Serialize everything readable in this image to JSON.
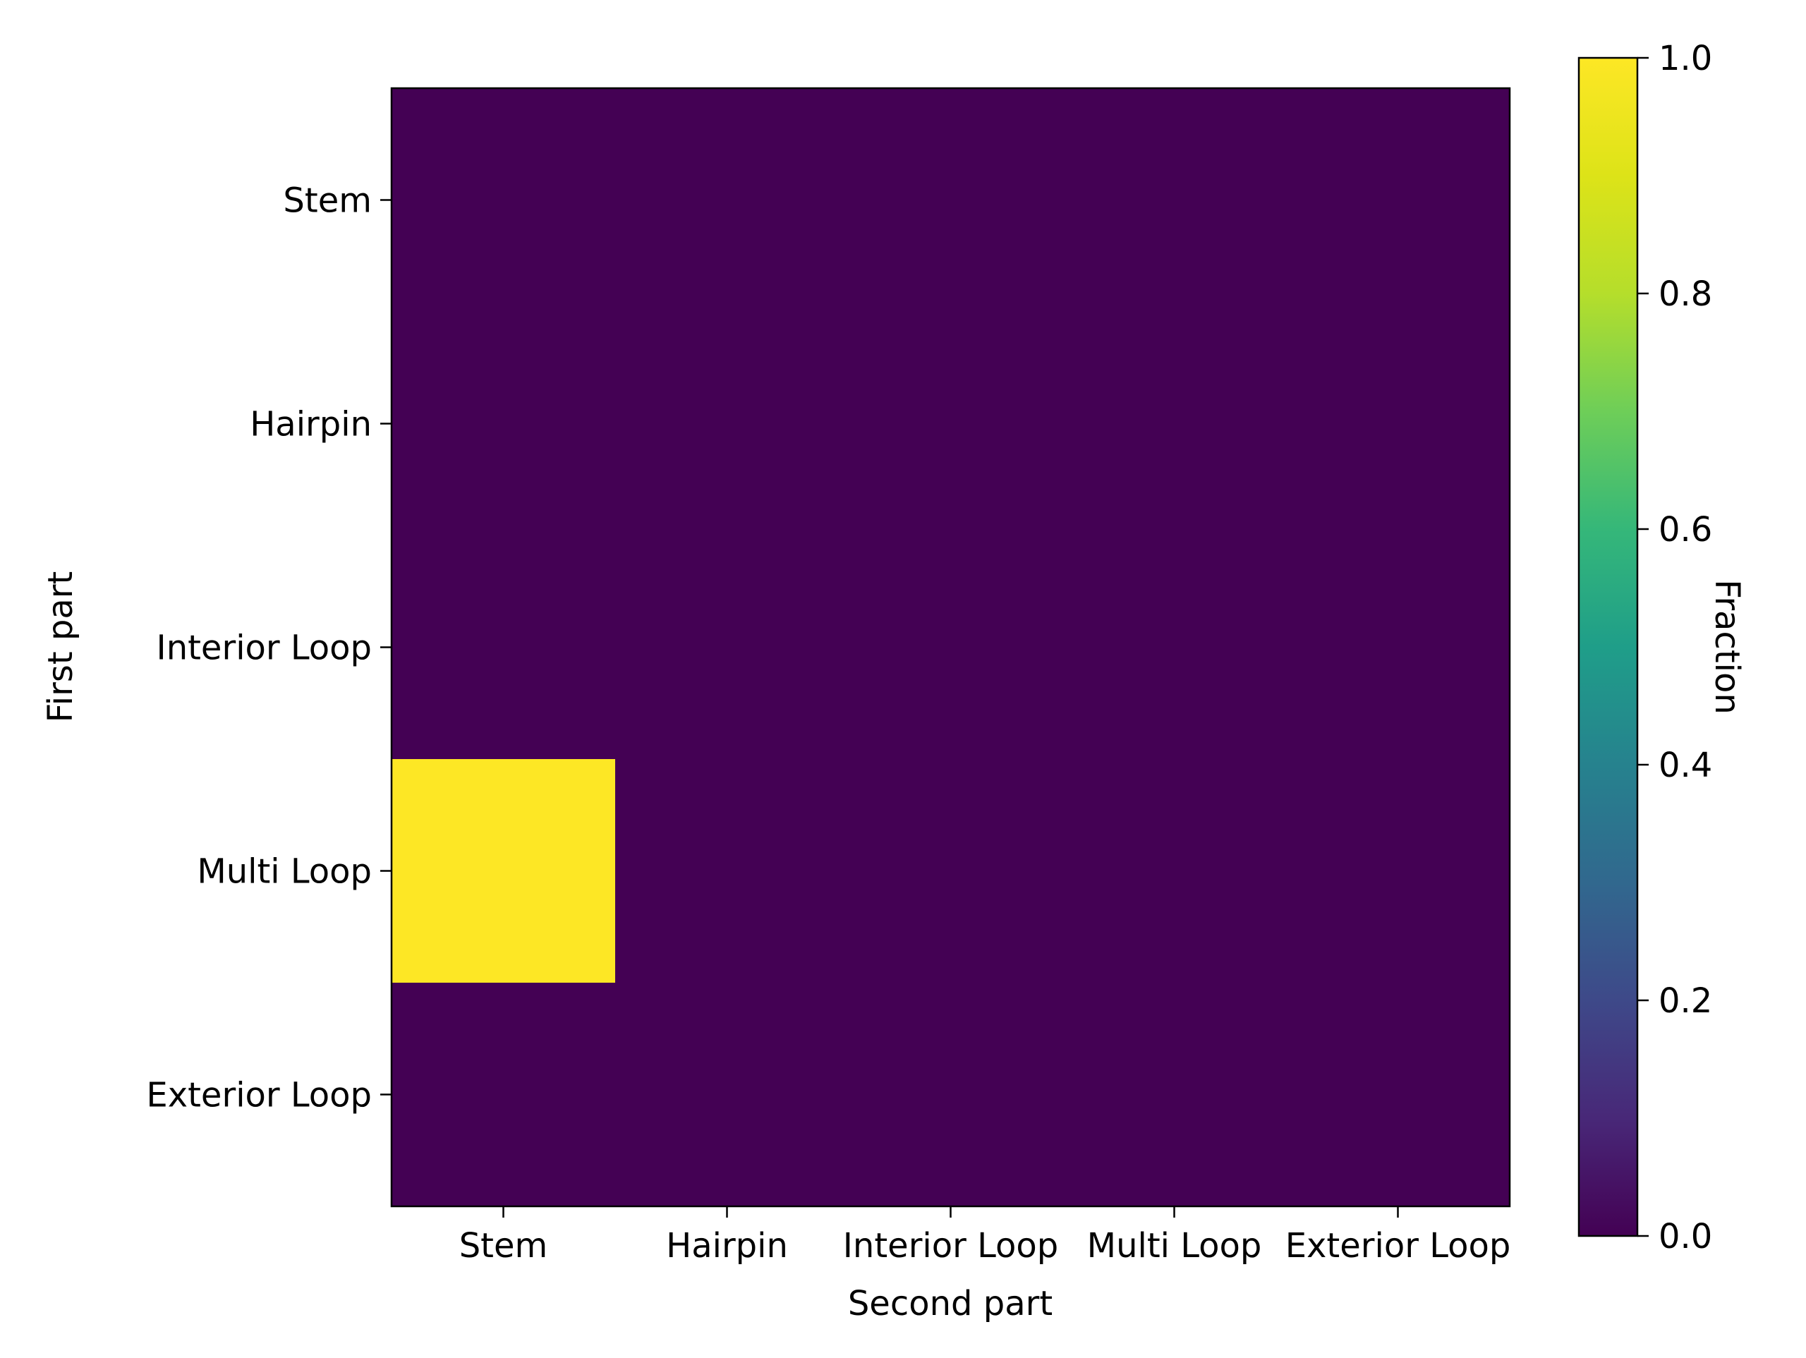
{
  "chart_data": {
    "type": "heatmap",
    "title": "",
    "xlabel": "Second part",
    "ylabel": "First part",
    "x_categories": [
      "Stem",
      "Hairpin",
      "Interior Loop",
      "Multi Loop",
      "Exterior Loop"
    ],
    "y_categories": [
      "Stem",
      "Hairpin",
      "Interior Loop",
      "Multi Loop",
      "Exterior Loop"
    ],
    "values": [
      [
        0,
        0,
        0,
        0,
        0
      ],
      [
        0,
        0,
        0,
        0,
        0
      ],
      [
        0,
        0,
        0,
        0,
        0
      ],
      [
        1,
        0,
        0,
        0,
        0
      ],
      [
        0,
        0,
        0,
        0,
        0
      ]
    ],
    "colormap": "viridis",
    "vmin": 0.0,
    "vmax": 1.0,
    "colorbar": {
      "label": "Fraction",
      "ticks": [
        "0.0",
        "0.2",
        "0.4",
        "0.6",
        "0.8",
        "1.0"
      ]
    },
    "colors": {
      "low": "#440154",
      "high": "#fde725"
    }
  }
}
